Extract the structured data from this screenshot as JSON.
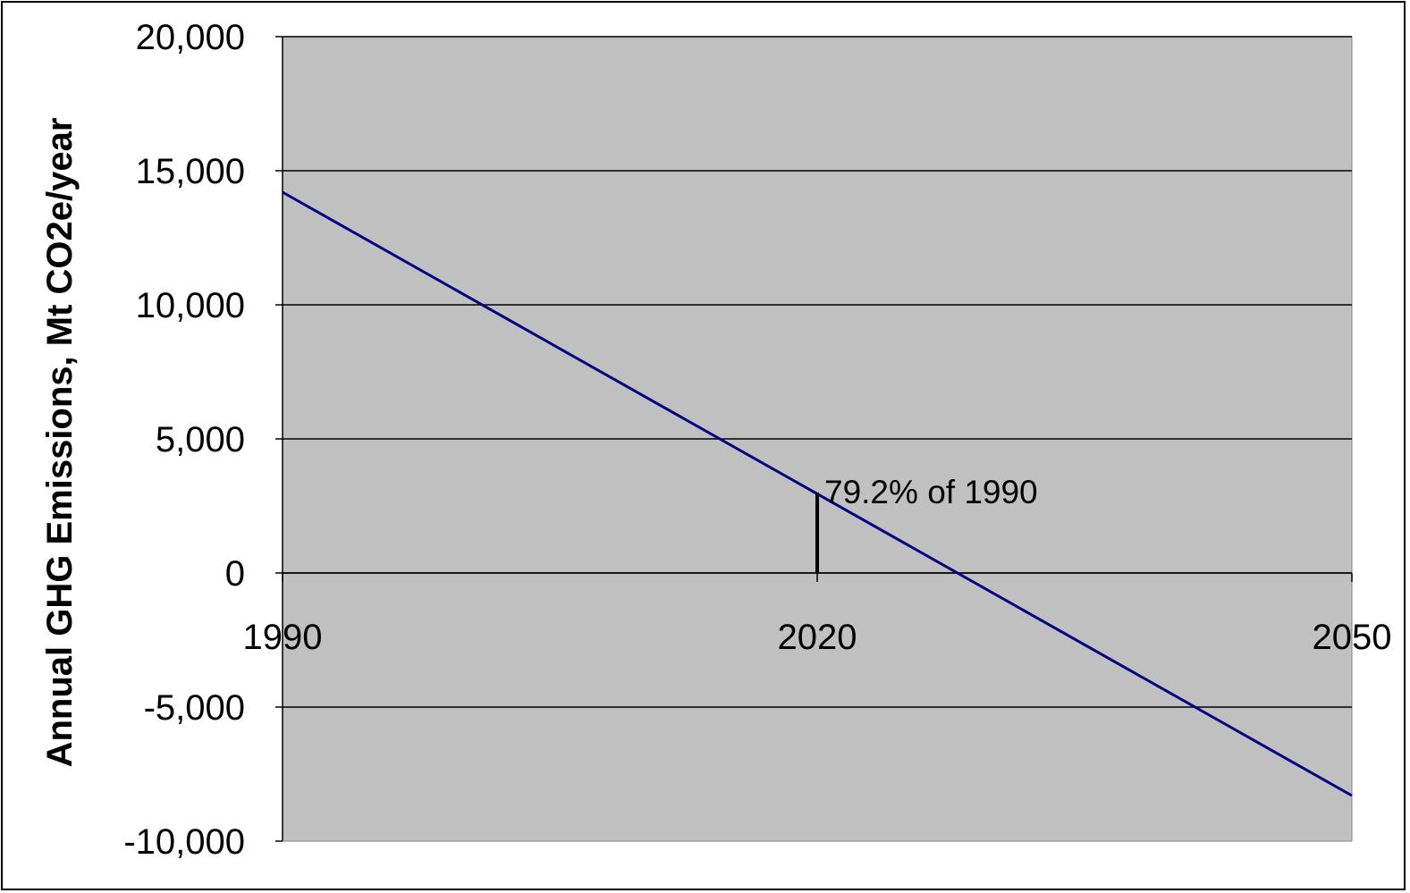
{
  "chart_data": {
    "type": "line",
    "title": "",
    "xlabel": "",
    "ylabel": "Annual GHG Emissions, Mt CO2e/year",
    "x_ticks": [
      "1990",
      "2020",
      "2050"
    ],
    "y_ticks": [
      "20,000",
      "15,000",
      "10,000",
      "5,000",
      "0",
      "-5,000",
      "-10,000"
    ],
    "xlim": [
      1990,
      2050
    ],
    "ylim": [
      -10000,
      20000
    ],
    "grid": "horizontal",
    "legend": "none",
    "series": [
      {
        "color": "#000080",
        "x": [
          1990,
          2050
        ],
        "y": [
          14200,
          -8300
        ]
      }
    ],
    "annotations": [
      {
        "text": "79.2% of 1990",
        "x": 2020,
        "y": 3000
      }
    ],
    "colors": {
      "plot_background": "#c0c0c0",
      "gridline": "#000000",
      "line": "#000080",
      "annotation_marker": "#000000"
    }
  }
}
